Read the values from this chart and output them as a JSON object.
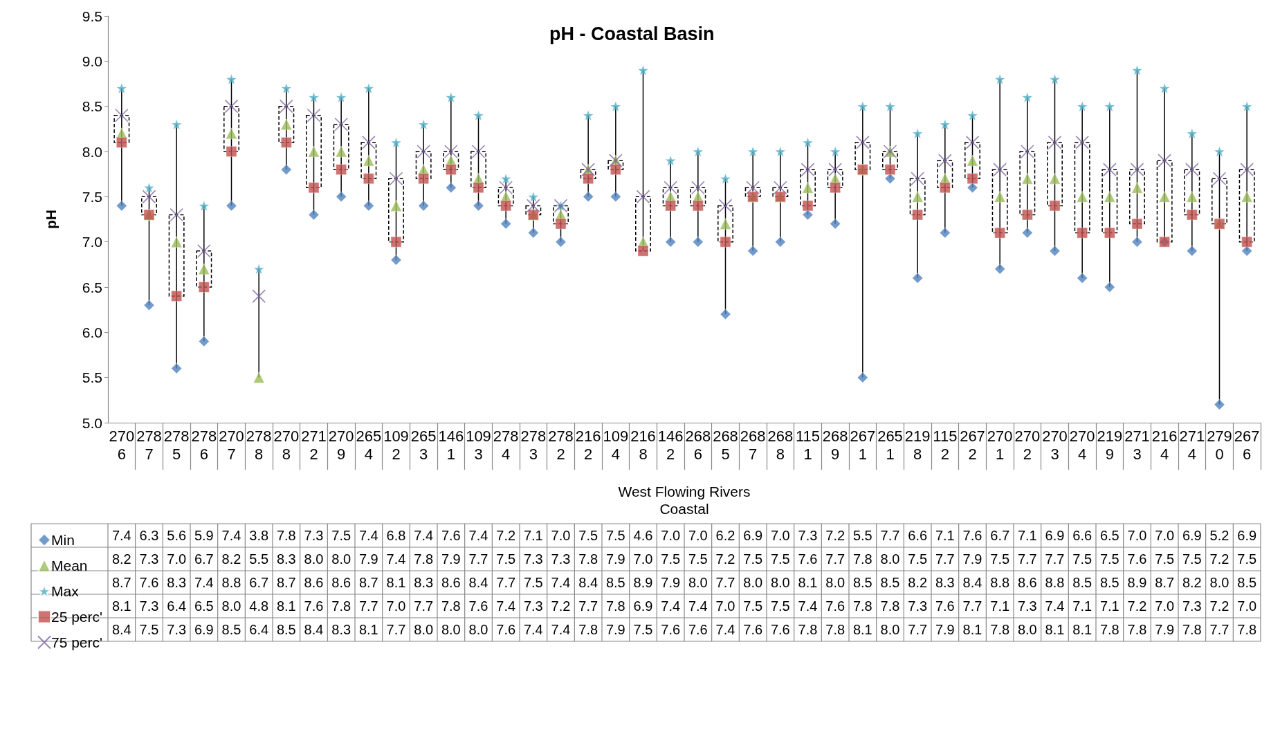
{
  "chart_data": {
    "type": "scatter",
    "title": "pH - Coastal Basin",
    "ylabel": "pH",
    "xlabel": "West Flowing Rivers",
    "annotations": [
      "Coastal"
    ],
    "categories": [
      "2706",
      "2787",
      "2785",
      "2786",
      "2707",
      "2788",
      "2708",
      "2712",
      "2709",
      "2654",
      "1092",
      "2653",
      "1461",
      "1093",
      "2784",
      "2783",
      "2782",
      "2162",
      "1094",
      "2168",
      "1462",
      "2686",
      "2685",
      "2687",
      "2688",
      "1151",
      "2689",
      "2671",
      "2651",
      "2198",
      "1152",
      "2672",
      "2701",
      "2702",
      "2703",
      "2704",
      "2199",
      "2713",
      "2164",
      "2714",
      "2790",
      "2676"
    ],
    "series": [
      {
        "name": "Min",
        "color": "#4f81bd",
        "marker": "diamond",
        "values": [
          7.4,
          6.3,
          5.6,
          5.9,
          7.4,
          null,
          7.8,
          7.3,
          7.5,
          7.4,
          6.8,
          7.4,
          7.6,
          7.4,
          7.2,
          7.1,
          7.0,
          7.5,
          7.5,
          null,
          7.0,
          7.0,
          6.2,
          6.9,
          7.0,
          7.3,
          7.2,
          5.5,
          7.7,
          6.6,
          7.1,
          7.6,
          6.7,
          7.1,
          6.9,
          6.6,
          6.5,
          7.0,
          7.0,
          6.9,
          5.2,
          6.9
        ],
        "value_labels": [
          "7.4",
          "6.3",
          "5.6",
          "5.9",
          "7.4",
          "3.8",
          "7.8",
          "7.3",
          "7.5",
          "7.4",
          "6.8",
          "7.4",
          "7.6",
          "7.4",
          "7.2",
          "7.1",
          "7.0",
          "7.5",
          "7.5",
          "4.6",
          "7.0",
          "7.0",
          "6.2",
          "6.9",
          "7.0",
          "7.3",
          "7.2",
          "5.5",
          "7.7",
          "6.6",
          "7.1",
          "7.6",
          "6.7",
          "7.1",
          "6.9",
          "6.6",
          "6.5",
          "7.0",
          "7.0",
          "6.9",
          "5.2",
          "6.9"
        ]
      },
      {
        "name": "Mean",
        "color": "#9bbb59",
        "marker": "triangle",
        "values": [
          8.2,
          7.3,
          7.0,
          6.7,
          8.2,
          5.5,
          8.3,
          8.0,
          8.0,
          7.9,
          7.4,
          7.8,
          7.9,
          7.7,
          7.5,
          7.3,
          7.3,
          7.8,
          7.9,
          7.0,
          7.5,
          7.5,
          7.2,
          7.5,
          7.5,
          7.6,
          7.7,
          7.8,
          8.0,
          7.5,
          7.7,
          7.9,
          7.5,
          7.7,
          7.7,
          7.5,
          7.5,
          7.6,
          7.5,
          7.5,
          7.2,
          7.5
        ],
        "value_labels": [
          "8.2",
          "7.3",
          "7.0",
          "6.7",
          "8.2",
          "5.5",
          "8.3",
          "8.0",
          "8.0",
          "7.9",
          "7.4",
          "7.8",
          "7.9",
          "7.7",
          "7.5",
          "7.3",
          "7.3",
          "7.8",
          "7.9",
          "7.0",
          "7.5",
          "7.5",
          "7.2",
          "7.5",
          "7.5",
          "7.6",
          "7.7",
          "7.8",
          "8.0",
          "7.5",
          "7.7",
          "7.9",
          "7.5",
          "7.7",
          "7.7",
          "7.5",
          "7.5",
          "7.6",
          "7.5",
          "7.5",
          "7.2",
          "7.5"
        ]
      },
      {
        "name": "Max",
        "color": "#4bacc6",
        "marker": "star",
        "values": [
          8.7,
          7.6,
          8.3,
          7.4,
          8.8,
          6.7,
          8.7,
          8.6,
          8.6,
          8.7,
          8.1,
          8.3,
          8.6,
          8.4,
          7.7,
          7.5,
          7.4,
          8.4,
          8.5,
          8.9,
          7.9,
          8.0,
          7.7,
          8.0,
          8.0,
          8.1,
          8.0,
          8.5,
          8.5,
          8.2,
          8.3,
          8.4,
          8.8,
          8.6,
          8.8,
          8.5,
          8.5,
          8.9,
          8.7,
          8.2,
          8.0,
          8.5
        ],
        "value_labels": [
          "8.7",
          "7.6",
          "8.3",
          "7.4",
          "8.8",
          "6.7",
          "8.7",
          "8.6",
          "8.6",
          "8.7",
          "8.1",
          "8.3",
          "8.6",
          "8.4",
          "7.7",
          "7.5",
          "7.4",
          "8.4",
          "8.5",
          "8.9",
          "7.9",
          "8.0",
          "7.7",
          "8.0",
          "8.0",
          "8.1",
          "8.0",
          "8.5",
          "8.5",
          "8.2",
          "8.3",
          "8.4",
          "8.8",
          "8.6",
          "8.8",
          "8.5",
          "8.5",
          "8.9",
          "8.7",
          "8.2",
          "8.0",
          "8.5"
        ]
      },
      {
        "name": "25 perc'",
        "color": "#c0504d",
        "marker": "square",
        "values": [
          8.1,
          7.3,
          6.4,
          6.5,
          8.0,
          null,
          8.1,
          7.6,
          7.8,
          7.7,
          7.0,
          7.7,
          7.8,
          7.6,
          7.4,
          7.3,
          7.2,
          7.7,
          7.8,
          6.9,
          7.4,
          7.4,
          7.0,
          7.5,
          7.5,
          7.4,
          7.6,
          7.8,
          7.8,
          7.3,
          7.6,
          7.7,
          7.1,
          7.3,
          7.4,
          7.1,
          7.1,
          7.2,
          7.0,
          7.3,
          7.2,
          7.0
        ],
        "value_labels": [
          "8.1",
          "7.3",
          "6.4",
          "6.5",
          "8.0",
          "4.8",
          "8.1",
          "7.6",
          "7.8",
          "7.7",
          "7.0",
          "7.7",
          "7.8",
          "7.6",
          "7.4",
          "7.3",
          "7.2",
          "7.7",
          "7.8",
          "6.9",
          "7.4",
          "7.4",
          "7.0",
          "7.5",
          "7.5",
          "7.4",
          "7.6",
          "7.8",
          "7.8",
          "7.3",
          "7.6",
          "7.7",
          "7.1",
          "7.3",
          "7.4",
          "7.1",
          "7.1",
          "7.2",
          "7.0",
          "7.3",
          "7.2",
          "7.0"
        ]
      },
      {
        "name": "75 perc'",
        "color": "#8064a2",
        "marker": "cross",
        "values": [
          8.4,
          7.5,
          7.3,
          6.9,
          8.5,
          6.4,
          8.5,
          8.4,
          8.3,
          8.1,
          7.7,
          8.0,
          8.0,
          8.0,
          7.6,
          7.4,
          7.4,
          7.8,
          7.9,
          7.5,
          7.6,
          7.6,
          7.4,
          7.6,
          7.6,
          7.8,
          7.8,
          8.1,
          8.0,
          7.7,
          7.9,
          8.1,
          7.8,
          8.0,
          8.1,
          8.1,
          7.8,
          7.8,
          7.9,
          7.8,
          7.7,
          7.8
        ],
        "value_labels": [
          "8.4",
          "7.5",
          "7.3",
          "6.9",
          "8.5",
          "6.4",
          "8.5",
          "8.4",
          "8.3",
          "8.1",
          "7.7",
          "8.0",
          "8.0",
          "8.0",
          "7.6",
          "7.4",
          "7.4",
          "7.8",
          "7.9",
          "7.5",
          "7.6",
          "7.6",
          "7.4",
          "7.6",
          "7.6",
          "7.8",
          "7.8",
          "8.1",
          "8.0",
          "7.7",
          "7.9",
          "8.1",
          "7.8",
          "8.0",
          "8.1",
          "8.1",
          "7.8",
          "7.8",
          "7.9",
          "7.8",
          "7.7",
          "7.8"
        ]
      }
    ],
    "ylim": [
      5,
      9.5
    ],
    "yticks": [
      {
        "value": 5,
        "label": "5.0"
      },
      5.5,
      {
        "value": 6,
        "label": "6.0"
      },
      6.5,
      {
        "value": 7,
        "label": "7.0"
      },
      7.5,
      {
        "value": 8,
        "label": "8.0"
      },
      8.5,
      {
        "value": 9,
        "label": "9.0"
      },
      9.5
    ],
    "grid": false,
    "legend": "bottom left"
  }
}
